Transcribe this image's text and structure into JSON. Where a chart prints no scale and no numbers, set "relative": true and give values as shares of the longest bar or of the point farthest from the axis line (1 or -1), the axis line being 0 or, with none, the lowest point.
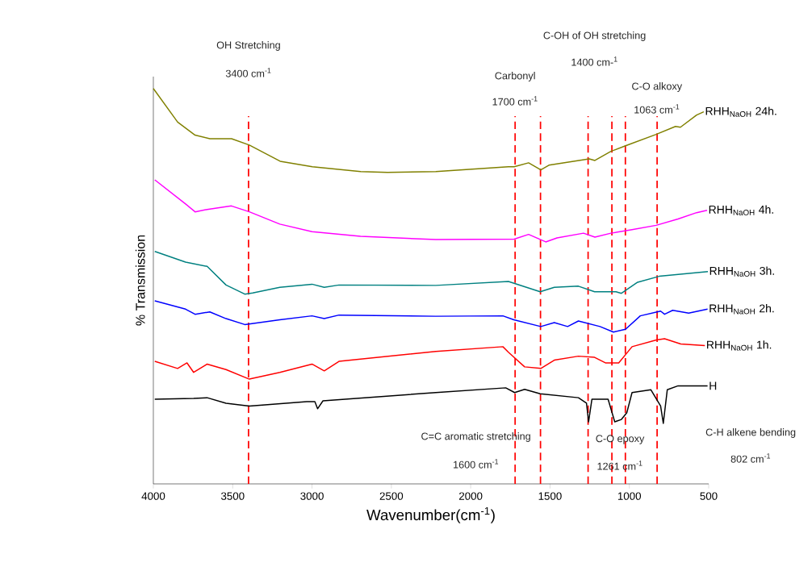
{
  "chart_data": {
    "type": "line",
    "xlabel": "Wavenumber(cm$^{-1}$)",
    "ylabel": "% Transmission",
    "relative": true,
    "tick_labels": "x",
    "grid": false,
    "xlim": [
      4000,
      500
    ],
    "xticks": [
      4000,
      3500,
      3000,
      2500,
      2000,
      1500,
      1000,
      500
    ],
    "series": [
      {
        "name": "RHH$_{NaOH}$ 24h.",
        "color": "#808000",
        "x": [
          4000,
          3847,
          3737,
          3644,
          3507,
          3395,
          3201,
          2998,
          2693,
          2525,
          2220,
          1762,
          1726,
          1635,
          1558,
          1507,
          1253,
          1217,
          1116,
          1024,
          831,
          709,
          678,
          576,
          531
        ],
        "values": [
          1.0,
          0.915,
          0.882,
          0.873,
          0.873,
          0.857,
          0.816,
          0.802,
          0.79,
          0.788,
          0.79,
          0.802,
          0.802,
          0.812,
          0.794,
          0.806,
          0.822,
          0.818,
          0.841,
          0.855,
          0.884,
          0.904,
          0.902,
          0.933,
          0.941
        ]
      },
      {
        "name": "RHH$_{NaOH}$ 4h.",
        "color": "#ff00ff",
        "x": [
          3991,
          3797,
          3737,
          3661,
          3508,
          3395,
          3203,
          3000,
          2694,
          2220,
          1726,
          1635,
          1527,
          1456,
          1289,
          1217,
          1116,
          983,
          831,
          693,
          576,
          510
        ],
        "values": [
          0.769,
          0.708,
          0.688,
          0.694,
          0.703,
          0.688,
          0.657,
          0.638,
          0.626,
          0.618,
          0.619,
          0.631,
          0.612,
          0.622,
          0.634,
          0.624,
          0.634,
          0.643,
          0.654,
          0.67,
          0.686,
          0.692
        ]
      },
      {
        "name": "RHH$_{NaOH}$ 3h.",
        "color": "#008080",
        "x": [
          3991,
          3797,
          3661,
          3542,
          3424,
          3374,
          3203,
          3000,
          2923,
          2830,
          2220,
          1762,
          1562,
          1473,
          1321,
          1219,
          1084,
          1050,
          948,
          812,
          505
        ],
        "values": [
          0.588,
          0.561,
          0.55,
          0.503,
          0.48,
          0.483,
          0.497,
          0.505,
          0.497,
          0.503,
          0.502,
          0.512,
          0.486,
          0.497,
          0.5,
          0.486,
          0.486,
          0.482,
          0.51,
          0.525,
          0.537
        ]
      },
      {
        "name": "RHH$_{NaOH}$ 2h.",
        "color": "#0000ff",
        "x": [
          3991,
          3797,
          3737,
          3644,
          3542,
          3424,
          3203,
          3000,
          2923,
          2830,
          2220,
          1797,
          1728,
          1558,
          1473,
          1389,
          1321,
          1185,
          1100,
          1024,
          931,
          803,
          778,
          727,
          626,
          507
        ],
        "values": [
          0.463,
          0.442,
          0.429,
          0.435,
          0.418,
          0.403,
          0.415,
          0.425,
          0.418,
          0.427,
          0.424,
          0.425,
          0.415,
          0.398,
          0.408,
          0.398,
          0.412,
          0.398,
          0.384,
          0.391,
          0.425,
          0.437,
          0.429,
          0.439,
          0.432,
          0.442
        ]
      },
      {
        "name": "RHH$_{NaOH}$ 1h.",
        "color": "#ff0000",
        "x": [
          3991,
          3847,
          3788,
          3746,
          3661,
          3542,
          3395,
          3203,
          3000,
          2923,
          2830,
          2220,
          1797,
          1762,
          1660,
          1558,
          1473,
          1321,
          1219,
          1151,
          1067,
          983,
          829,
          778,
          676,
          524
        ],
        "values": [
          0.31,
          0.292,
          0.306,
          0.282,
          0.303,
          0.289,
          0.265,
          0.282,
          0.303,
          0.286,
          0.31,
          0.335,
          0.347,
          0.333,
          0.296,
          0.292,
          0.313,
          0.323,
          0.32,
          0.306,
          0.306,
          0.347,
          0.364,
          0.367,
          0.354,
          0.35
        ]
      },
      {
        "name": "H",
        "color": "#000000",
        "x": [
          3991,
          3746,
          3661,
          3542,
          3395,
          3033,
          2982,
          2965,
          2931,
          2220,
          1779,
          1723,
          1660,
          1562,
          1321,
          1270,
          1257,
          1236,
          1134,
          1092,
          1050,
          1016,
          983,
          864,
          803,
          786,
          761,
          693,
          507
        ],
        "values": [
          0.214,
          0.216,
          0.218,
          0.204,
          0.197,
          0.208,
          0.208,
          0.19,
          0.21,
          0.231,
          0.243,
          0.231,
          0.239,
          0.228,
          0.218,
          0.204,
          0.157,
          0.214,
          0.214,
          0.157,
          0.163,
          0.18,
          0.231,
          0.238,
          0.197,
          0.153,
          0.238,
          0.248,
          0.248
        ]
      }
    ],
    "ref_lines": [
      {
        "axis": "x",
        "value": 3400,
        "color": "#ff0000",
        "line_style": "dashed"
      },
      {
        "axis": "x",
        "value": 1720,
        "color": "#ff0000",
        "line_style": "dashed"
      },
      {
        "axis": "x",
        "value": 1560,
        "color": "#ff0000",
        "line_style": "dashed"
      },
      {
        "axis": "x",
        "value": 1260,
        "color": "#ff0000",
        "line_style": "dashed"
      },
      {
        "axis": "x",
        "value": 1110,
        "color": "#ff0000",
        "line_style": "dashed"
      },
      {
        "axis": "x",
        "value": 1025,
        "color": "#ff0000",
        "line_style": "dashed"
      },
      {
        "axis": "x",
        "value": 825,
        "color": "#ff0000",
        "line_style": "dashed"
      }
    ],
    "annotations": [
      "OH Stretching",
      "3400 cm$^{-1}$",
      "Carbonyl",
      "1700 cm$^{-1}$",
      "C=C aromatic stretching",
      "1600 cm$^{-1}$",
      "C-OH of OH stretching",
      "1400 cm-$^{1}$",
      "C-O epoxy",
      "1261 cm$^{-1}$",
      "C-O alkoxy",
      "1063 cm$^{-1}$",
      "C-H alkene bending",
      "802 cm$^{-1}$"
    ]
  }
}
